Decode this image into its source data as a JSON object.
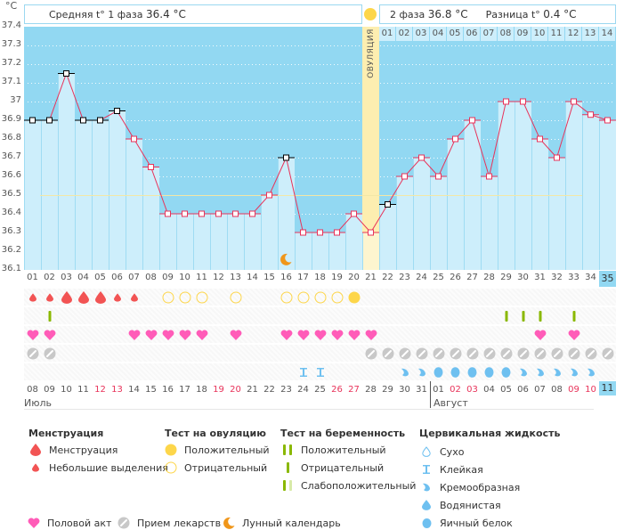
{
  "header": {
    "unit": "°C",
    "phase1_label": "Средняя t° 1 фаза",
    "phase1_value": "36.4 °C",
    "phase2_label": "2 фаза",
    "phase2_value": "36.8 °C",
    "diff_label": "Разница t°",
    "diff_value": "0.4 °C",
    "ovulation_label": "ОВУЛЯЦИЯ"
  },
  "colors": {
    "chart_bg": "#92d8f2",
    "bar_fill": "#cdeefb",
    "line": "#e8335a",
    "ovulation": "#fdeeb0",
    "coverline": "#f3e7a6",
    "menstruation": "#f25454",
    "ovul_test": "#fdd64a",
    "preg_test": "#8ab800",
    "heart": "#ff5cb8",
    "pill": "#c8c8c8",
    "fluid": "#6ec0f0",
    "moon": "#f0961a",
    "weekend": "#e8335a"
  },
  "chart_data": {
    "type": "line",
    "title": "",
    "ylabel": "°C",
    "ylim": [
      36.1,
      37.4
    ],
    "yticks": [
      "37.4",
      "37.3",
      "37.2",
      "37.1",
      "37",
      "36.9",
      "36.8",
      "36.7",
      "36.6",
      "36.5",
      "36.4",
      "36.3",
      "36.2",
      "36.1"
    ],
    "coverline": 36.5,
    "ovulation_day": 21,
    "moon_day": 16,
    "selected_day": 35,
    "x": [
      "01",
      "02",
      "03",
      "04",
      "05",
      "06",
      "07",
      "08",
      "09",
      "10",
      "11",
      "12",
      "13",
      "14",
      "15",
      "16",
      "17",
      "18",
      "19",
      "20",
      "21",
      "22",
      "23",
      "24",
      "25",
      "26",
      "27",
      "28",
      "29",
      "30",
      "31",
      "32",
      "33",
      "34",
      "35"
    ],
    "values": [
      36.9,
      36.9,
      37.15,
      36.9,
      36.9,
      36.95,
      36.8,
      36.65,
      36.4,
      36.4,
      36.4,
      36.4,
      36.4,
      36.4,
      36.5,
      36.7,
      36.3,
      36.3,
      36.3,
      36.4,
      36.3,
      36.45,
      36.6,
      36.7,
      36.6,
      36.8,
      36.9,
      36.6,
      37.0,
      37.0,
      36.8,
      36.7,
      37.0,
      36.93,
      36.9
    ],
    "excluded_days": [
      1,
      2,
      3,
      4,
      5,
      6,
      16,
      22
    ],
    "phase2_days": [
      "01",
      "02",
      "03",
      "04",
      "05",
      "06",
      "07",
      "08",
      "09",
      "10",
      "11",
      "12",
      "13",
      "14"
    ]
  },
  "rows": {
    "menstruation": {
      "1": "small",
      "2": "small",
      "3": "big",
      "4": "big",
      "5": "big",
      "6": "small",
      "7": "small"
    },
    "ovulation_test": {
      "9": "neg",
      "10": "neg",
      "11": "neg",
      "13": "neg",
      "16": "neg",
      "17": "neg",
      "18": "neg",
      "19": "neg",
      "20": "pos"
    },
    "pregnancy_test": {
      "2": "neg",
      "29": "neg",
      "30": "neg",
      "31": "neg",
      "33": "neg"
    },
    "intercourse": [
      1,
      2,
      7,
      8,
      9,
      10,
      11,
      13,
      16,
      17,
      18,
      19,
      20,
      21,
      31,
      33
    ],
    "medication": [
      1,
      2,
      21,
      22,
      23,
      24,
      25,
      26,
      27,
      28,
      29,
      30,
      31,
      32,
      33,
      34,
      35
    ],
    "cervical": {
      "17": "sticky",
      "18": "sticky",
      "23": "creamy",
      "24": "creamy",
      "25": "egg",
      "26": "egg",
      "27": "egg",
      "28": "egg",
      "29": "egg",
      "30": "creamy",
      "31": "creamy",
      "32": "creamy",
      "33": "creamy",
      "34": "creamy"
    }
  },
  "dates": [
    {
      "d": "08",
      "red": false
    },
    {
      "d": "09",
      "red": false
    },
    {
      "d": "10",
      "red": false
    },
    {
      "d": "11",
      "red": false
    },
    {
      "d": "12",
      "red": true
    },
    {
      "d": "13",
      "red": true
    },
    {
      "d": "14",
      "red": false
    },
    {
      "d": "15",
      "red": false
    },
    {
      "d": "16",
      "red": false
    },
    {
      "d": "17",
      "red": false
    },
    {
      "d": "18",
      "red": false
    },
    {
      "d": "19",
      "red": true
    },
    {
      "d": "20",
      "red": true
    },
    {
      "d": "21",
      "red": false
    },
    {
      "d": "22",
      "red": false
    },
    {
      "d": "23",
      "red": false
    },
    {
      "d": "24",
      "red": false
    },
    {
      "d": "25",
      "red": false
    },
    {
      "d": "26",
      "red": true
    },
    {
      "d": "27",
      "red": true
    },
    {
      "d": "28",
      "red": false
    },
    {
      "d": "29",
      "red": false
    },
    {
      "d": "30",
      "red": false
    },
    {
      "d": "31",
      "red": false
    },
    {
      "d": "01",
      "red": false
    },
    {
      "d": "02",
      "red": true
    },
    {
      "d": "03",
      "red": true
    },
    {
      "d": "04",
      "red": false
    },
    {
      "d": "05",
      "red": false
    },
    {
      "d": "06",
      "red": false
    },
    {
      "d": "07",
      "red": false
    },
    {
      "d": "08",
      "red": false
    },
    {
      "d": "09",
      "red": true
    },
    {
      "d": "10",
      "red": true
    },
    {
      "d": "11",
      "red": false
    }
  ],
  "months": {
    "first": "Июль",
    "second": "Август"
  },
  "legend": {
    "menstruation": {
      "title": "Менструация",
      "items": [
        "Менструация",
        "Небольшие выделения"
      ]
    },
    "ovulation_test": {
      "title": "Тест на овуляцию",
      "items": [
        "Положительный",
        "Отрицательный"
      ]
    },
    "pregnancy_test": {
      "title": "Тест на беременность",
      "items": [
        "Положительный",
        "Отрицательный",
        "Слабоположительный"
      ]
    },
    "cervical": {
      "title": "Цервикальная жидкость",
      "items": [
        "Сухо",
        "Клейкая",
        "Кремообразная",
        "Водянистая",
        "Яичный белок"
      ]
    },
    "bottom": [
      "Половой акт",
      "Прием лекарств",
      "Лунный календарь"
    ]
  }
}
